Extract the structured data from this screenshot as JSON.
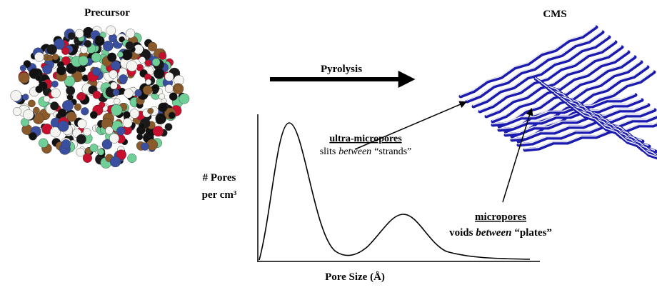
{
  "precursor": {
    "label": "Precursor"
  },
  "cms": {
    "label": "CMS"
  },
  "process": {
    "label": "Pyrolysis"
  },
  "plot": {
    "y_label": [
      "# Pores",
      "per cm³"
    ],
    "x_label": "Pore Size (Å)"
  },
  "annotations": [
    {
      "title": "ultra-micropores",
      "description": [
        "slits",
        "between",
        "“strands”"
      ]
    },
    {
      "title": "micropores",
      "description": [
        "voids",
        "between",
        "“plates”"
      ]
    }
  ]
}
